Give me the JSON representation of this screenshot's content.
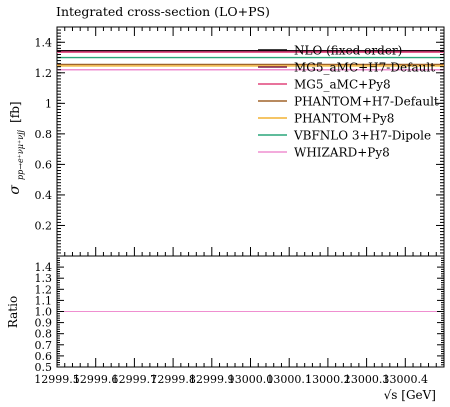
{
  "chart_data": {
    "type": "line",
    "title": "Integrated cross-section (LO+PS)",
    "xlabel": "√s [GeV]",
    "ylabel_main": "σ",
    "ylabel_sub": "pp→e⁺νμ⁺νjj",
    "ylabel_unit": "[fb]",
    "ylabel_ratio": "Ratio",
    "xlim": [
      12999.5,
      13000.5
    ],
    "ylim": [
      0,
      1.5
    ],
    "ratio_ylim": [
      0.5,
      1.5
    ],
    "x_ticks": [
      "12999.5",
      "12999.6",
      "12999.7",
      "12999.8",
      "12999.9",
      "13000.0",
      "13000.1",
      "13000.2",
      "13000.3",
      "13000.4"
    ],
    "x_tick_values": [
      12999.5,
      12999.6,
      12999.7,
      12999.8,
      12999.9,
      13000.0,
      13000.1,
      13000.2,
      13000.3,
      13000.4
    ],
    "y_ticks": [
      "0.2",
      "0.4",
      "0.6",
      "0.8",
      "1",
      "1.2",
      "1.4"
    ],
    "y_tick_values": [
      0.2,
      0.4,
      0.6,
      0.8,
      1.0,
      1.2,
      1.4
    ],
    "ratio_ticks": [
      "0.5",
      "0.6",
      "0.7",
      "0.8",
      "0.9",
      "1.0",
      "1.1",
      "1.2",
      "1.3",
      "1.4"
    ],
    "ratio_tick_values": [
      0.5,
      0.6,
      0.7,
      0.8,
      0.9,
      1.0,
      1.1,
      1.2,
      1.3,
      1.4
    ],
    "legend_position": "top-right",
    "grid": false,
    "series": [
      {
        "name": "NLO (fixed order)",
        "color": "#000000",
        "value": 1.345,
        "ratio": 1.0
      },
      {
        "name": "MG5_aMC+H7-Default",
        "color": "#7a1f4a",
        "value": 1.34,
        "ratio": 1.0
      },
      {
        "name": "MG5_aMC+Py8",
        "color": "#e0457b",
        "value": 1.335,
        "ratio": 1.0
      },
      {
        "name": "PHANTOM+H7-Default",
        "color": "#a0632a",
        "value": 1.255,
        "ratio": 1.0
      },
      {
        "name": "PHANTOM+Py8",
        "color": "#f2b233",
        "value": 1.245,
        "ratio": 1.0
      },
      {
        "name": "VBFNLO 3+H7-Dipole",
        "color": "#2aa67a",
        "value": 1.3,
        "ratio": 1.0
      },
      {
        "name": "WHIZARD+Py8",
        "color": "#ef8fd0",
        "value": 1.22,
        "ratio": 1.0
      }
    ]
  }
}
